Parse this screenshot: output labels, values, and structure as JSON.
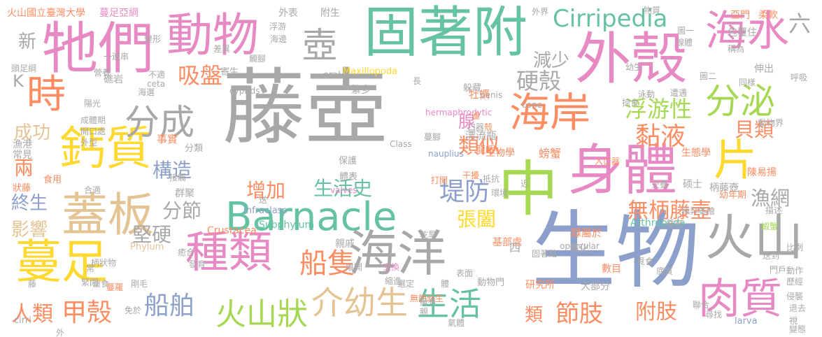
{
  "palette": {
    "gray": "#a8a8a8",
    "pink": "#e78ac3",
    "green": "#66c2a5",
    "orange": "#fc8d62",
    "blue": "#8da0cb",
    "lime": "#a6d854",
    "yellow": "#ffd92f",
    "tan": "#e5c494",
    "lightgray": "#b3b3b3"
  },
  "words": [
    {
      "text": "藤壺",
      "color": "gray"
    },
    {
      "text": "生物",
      "color": "blue"
    },
    {
      "text": "Barnacle",
      "color": "green"
    },
    {
      "text": "固著附",
      "color": "green"
    },
    {
      "text": "外殼",
      "color": "pink"
    },
    {
      "text": "牠們",
      "color": "pink"
    },
    {
      "text": "動物",
      "color": "pink"
    },
    {
      "text": "壺",
      "color": "gray"
    },
    {
      "text": "中",
      "color": "lime"
    },
    {
      "text": "身體",
      "color": "pink"
    },
    {
      "text": "海水",
      "color": "pink"
    },
    {
      "text": "分泌",
      "color": "lime"
    },
    {
      "text": "片",
      "color": "yellow"
    },
    {
      "text": "火山",
      "color": "gray"
    },
    {
      "text": "肉質",
      "color": "pink"
    },
    {
      "text": "海洋",
      "color": "gray"
    },
    {
      "text": "海岸",
      "color": "orange"
    },
    {
      "text": "種類",
      "color": "pink"
    },
    {
      "text": "蓋板",
      "color": "tan"
    },
    {
      "text": "蔓足",
      "color": "yellow"
    },
    {
      "text": "鈣質",
      "color": "yellow"
    },
    {
      "text": "時",
      "color": "orange"
    },
    {
      "text": "分成",
      "color": "gray"
    },
    {
      "text": "介幼生",
      "color": "tan"
    },
    {
      "text": "生活",
      "color": "green"
    },
    {
      "text": "火山狀",
      "color": "lime"
    },
    {
      "text": "船隻",
      "color": "orange"
    },
    {
      "text": "船舶",
      "color": "blue"
    },
    {
      "text": "甲殼",
      "color": "orange"
    },
    {
      "text": "人類",
      "color": "orange"
    },
    {
      "text": "堤防",
      "color": "blue"
    },
    {
      "text": "張闔",
      "color": "yellow"
    },
    {
      "text": "黏液",
      "color": "orange"
    },
    {
      "text": "貝類",
      "color": "orange"
    },
    {
      "text": "浮游性",
      "color": "lime"
    },
    {
      "text": "硬殼",
      "color": "gray"
    },
    {
      "text": "Cirripedia",
      "color": "green"
    },
    {
      "text": "吸盤",
      "color": "orange"
    },
    {
      "text": "減少",
      "color": "gray"
    },
    {
      "text": "六",
      "color": "gray"
    },
    {
      "text": "類似",
      "color": "orange"
    },
    {
      "text": "腺",
      "color": "pink"
    },
    {
      "text": "構造",
      "color": "blue"
    },
    {
      "text": "增加",
      "color": "orange"
    },
    {
      "text": "生活史",
      "color": "green"
    },
    {
      "text": "分節",
      "color": "gray"
    },
    {
      "text": "堅硬",
      "color": "gray"
    },
    {
      "text": "節肢",
      "color": "orange"
    },
    {
      "text": "附肢",
      "color": "orange"
    },
    {
      "text": "類",
      "color": "orange"
    },
    {
      "text": "無柄藤壺",
      "color": "orange"
    },
    {
      "text": "漁網",
      "color": "gray"
    },
    {
      "text": "成功",
      "color": "tan"
    },
    {
      "text": "兩",
      "color": "orange"
    },
    {
      "text": "終生",
      "color": "blue"
    },
    {
      "text": "影響",
      "color": "tan"
    },
    {
      "text": "新",
      "color": "gray"
    },
    {
      "text": "K",
      "color": "gray"
    },
    {
      "text": "火山國立臺灣大學",
      "color": "orange"
    },
    {
      "text": "蔓足亞綱",
      "color": "pink"
    },
    {
      "text": "外表",
      "color": "gray"
    },
    {
      "text": "附生",
      "color": "gray"
    },
    {
      "text": "生物學",
      "color": "orange"
    },
    {
      "text": "螃蟹",
      "color": "orange"
    },
    {
      "text": "生態學",
      "color": "orange"
    },
    {
      "text": "陳易揚",
      "color": "orange"
    },
    {
      "text": "牡蠣",
      "color": "orange"
    },
    {
      "text": "漂流瓶",
      "color": "gray"
    },
    {
      "text": "龍蝦",
      "color": "orange"
    },
    {
      "text": "事實",
      "color": "orange"
    },
    {
      "text": "漁港",
      "color": "gray"
    },
    {
      "text": "常見",
      "color": "gray"
    },
    {
      "text": "礁岩",
      "color": "gray"
    },
    {
      "text": "Maxillopoda",
      "color": "yellow"
    },
    {
      "text": "Arthropoda",
      "color": "green"
    },
    {
      "text": "Crustacea",
      "color": "orange"
    },
    {
      "text": "Subphylum",
      "color": "green"
    },
    {
      "text": "Phylum",
      "color": "tan"
    },
    {
      "text": "Infraclass",
      "color": "blue"
    },
    {
      "text": "隸屬於",
      "color": "orange"
    },
    {
      "text": "演化",
      "color": "gray"
    },
    {
      "text": "研究所",
      "color": "orange"
    },
    {
      "text": "大部分",
      "color": "gray"
    },
    {
      "text": "親戚",
      "color": "gray"
    },
    {
      "text": "群聚",
      "color": "gray"
    },
    {
      "text": "分類",
      "color": "gray"
    },
    {
      "text": "硕士",
      "color": "gray"
    },
    {
      "text": "柄藤壺",
      "color": "gray"
    },
    {
      "text": "幼年期",
      "color": "orange"
    },
    {
      "text": "食用",
      "color": "orange"
    },
    {
      "text": "狀藤",
      "color": "orange"
    },
    {
      "text": "亞門",
      "color": "orange"
    },
    {
      "text": "柔軟",
      "color": "orange"
    },
    {
      "text": "包覆住",
      "color": "gray"
    },
    {
      "text": "伸出",
      "color": "gray"
    },
    {
      "text": "動物門",
      "color": "gray"
    },
    {
      "text": "基部處",
      "color": "orange"
    },
    {
      "text": "四",
      "color": "gray"
    },
    {
      "text": "數目",
      "color": "orange"
    },
    {
      "text": "繁多",
      "color": "gray"
    },
    {
      "text": "躲藏",
      "color": "gray"
    },
    {
      "text": "寄生",
      "color": "gray"
    },
    {
      "text": "保護",
      "color": "gray"
    },
    {
      "text": "體表",
      "color": "gray"
    },
    {
      "text": "larva",
      "color": "blue"
    },
    {
      "text": "cirri",
      "color": "gray"
    },
    {
      "text": "oral",
      "color": "gray"
    },
    {
      "text": "penis",
      "color": "gray"
    },
    {
      "text": "cyprids",
      "color": "gray"
    },
    {
      "text": "ceta",
      "color": "gray"
    },
    {
      "text": "cone",
      "color": "gray"
    },
    {
      "text": "hermaphrodytic",
      "color": "pink"
    },
    {
      "text": "Class",
      "color": "gray"
    },
    {
      "text": "nauplius",
      "color": "blue"
    },
    {
      "text": "valves",
      "color": "pink"
    },
    {
      "text": "opercular",
      "color": "gray"
    },
    {
      "text": "蝦蟹",
      "color": "lime"
    },
    {
      "text": "頭足綱",
      "color": "gray"
    },
    {
      "text": "成體期",
      "color": "gray"
    },
    {
      "text": "開口處",
      "color": "gray"
    },
    {
      "text": "外型",
      "color": "gray"
    },
    {
      "text": "抵抗",
      "color": "gray"
    },
    {
      "text": "環境",
      "color": "gray"
    },
    {
      "text": "打開",
      "color": "orange"
    },
    {
      "text": "干擾",
      "color": "orange"
    },
    {
      "text": "近",
      "color": "gray"
    },
    {
      "text": "入口器",
      "color": "orange"
    },
    {
      "text": "陳羿蓁繪",
      "color": "gray"
    },
    {
      "text": "固著點",
      "color": "gray"
    },
    {
      "text": "交換",
      "color": "pink"
    },
    {
      "text": "無節幼生",
      "color": "orange"
    },
    {
      "text": "柄狀物",
      "color": "gray"
    },
    {
      "text": "蔓羅",
      "color": "orange"
    },
    {
      "text": "剛毛",
      "color": "gray"
    },
    {
      "text": "常",
      "color": "gray"
    },
    {
      "text": "濾食",
      "color": "gray"
    },
    {
      "text": "免於",
      "color": "gray"
    },
    {
      "text": "營養",
      "color": "gray"
    },
    {
      "text": "一連串",
      "color": "gray"
    },
    {
      "text": "海選",
      "color": "gray"
    },
    {
      "text": "差異",
      "color": "gray"
    },
    {
      "text": "海邊",
      "color": "gray"
    },
    {
      "text": "浮游",
      "color": "gray"
    },
    {
      "text": "觸腳",
      "color": "gray"
    },
    {
      "text": "呼吸",
      "color": "gray"
    },
    {
      "text": "尋找",
      "color": "gray"
    },
    {
      "text": "變態",
      "color": "gray"
    },
    {
      "text": "退去",
      "color": "gray"
    },
    {
      "text": "侵襲",
      "color": "gray"
    },
    {
      "text": "擁有",
      "color": "gray"
    },
    {
      "text": "表面",
      "color": "gray"
    },
    {
      "text": "交叠",
      "color": "gray"
    },
    {
      "text": "器官",
      "color": "gray"
    },
    {
      "text": "覓食",
      "color": "gray"
    },
    {
      "text": "底質",
      "color": "gray"
    },
    {
      "text": "動作",
      "color": "gray"
    },
    {
      "text": "歷經",
      "color": "gray"
    },
    {
      "text": "比例",
      "color": "gray"
    },
    {
      "text": "門戶",
      "color": "gray"
    },
    {
      "text": "掠食",
      "color": "gray"
    },
    {
      "text": "泳動",
      "color": "gray"
    },
    {
      "text": "遭遇",
      "color": "gray"
    },
    {
      "text": "圖二",
      "color": "gray"
    },
    {
      "text": "圖一",
      "color": "gray"
    },
    {
      "text": "幼生",
      "color": "gray"
    },
    {
      "text": "物質",
      "color": "gray"
    },
    {
      "text": "外界",
      "color": "gray"
    },
    {
      "text": "殼",
      "color": "orange"
    },
    {
      "text": "濾",
      "color": "orange"
    },
    {
      "text": "口器",
      "color": "gray"
    },
    {
      "text": "體",
      "color": "gray"
    },
    {
      "text": "親",
      "color": "gray"
    },
    {
      "text": "視",
      "color": "gray"
    },
    {
      "text": "藤",
      "color": "gray"
    },
    {
      "text": "外",
      "color": "gray"
    },
    {
      "text": "長",
      "color": "gray"
    },
    {
      "text": "乾旱",
      "color": "gray"
    },
    {
      "text": "陽光",
      "color": "gray"
    },
    {
      "text": "合適",
      "color": "gray"
    },
    {
      "text": "緊閉",
      "color": "gray"
    },
    {
      "text": "癒合",
      "color": "gray"
    },
    {
      "text": "送",
      "color": "gray"
    },
    {
      "text": "離開",
      "color": "gray"
    },
    {
      "text": "選定",
      "color": "gray"
    },
    {
      "text": "描述",
      "color": "gray"
    },
    {
      "text": "變形",
      "color": "gray"
    },
    {
      "text": "不適",
      "color": "gray"
    },
    {
      "text": "聯合",
      "color": "gray"
    },
    {
      "text": "動物界",
      "color": "gray"
    },
    {
      "text": "送到",
      "color": "gray"
    },
    {
      "text": "縮進",
      "color": "gray"
    },
    {
      "text": "蔓腳",
      "color": "gray"
    },
    {
      "text": "氣體",
      "color": "gray"
    },
    {
      "text": "同樣",
      "color": "gray"
    },
    {
      "text": "稱為",
      "color": "gray"
    },
    {
      "text": "腺體",
      "color": "gray"
    },
    {
      "text": "發育",
      "color": "gray"
    },
    {
      "text": "接觸",
      "color": "gray"
    }
  ]
}
